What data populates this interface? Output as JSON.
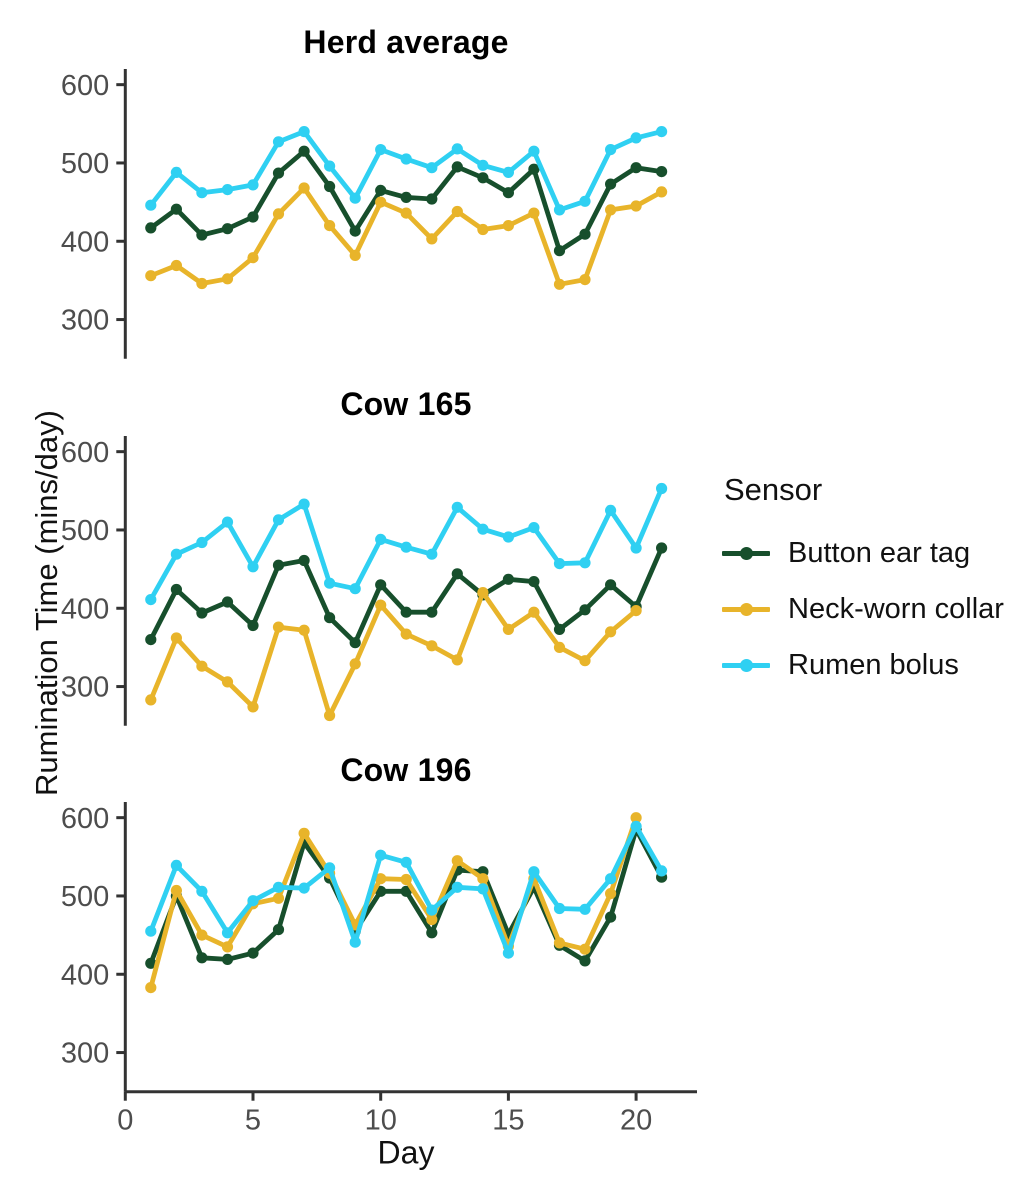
{
  "axes": {
    "ylabel": "Rumination Time (mins/day)",
    "xlabel": "Day",
    "y_ticks": [
      600,
      500,
      400,
      300
    ],
    "x_ticks": [
      0,
      5,
      10,
      15,
      20
    ],
    "ylim": [
      250,
      620
    ],
    "xlim": [
      0,
      22.5
    ],
    "axis_color": "#333333",
    "tick_label_color": "#4d4d4d"
  },
  "legend": {
    "title": "Sensor",
    "entries": [
      {
        "label": "Button ear tag",
        "color": "#174f2c"
      },
      {
        "label": "Neck-worn collar",
        "color": "#e8b42a"
      },
      {
        "label": "Rumen bolus",
        "color": "#2fd0f2"
      }
    ]
  },
  "chart_data": [
    {
      "type": "line",
      "title": "Herd average",
      "xlabel": "Day",
      "ylabel": "Rumination Time (mins/day)",
      "x": [
        1,
        2,
        3,
        4,
        5,
        6,
        7,
        8,
        9,
        10,
        11,
        12,
        13,
        14,
        15,
        16,
        17,
        18,
        19,
        20,
        21
      ],
      "series": [
        {
          "name": "Button ear tag",
          "values": [
            417,
            441,
            408,
            416,
            431,
            487,
            515,
            470,
            413,
            465,
            456,
            454,
            495,
            481,
            462,
            492,
            388,
            409,
            473,
            494,
            489
          ]
        },
        {
          "name": "Neck-worn collar",
          "values": [
            356,
            369,
            346,
            352,
            379,
            435,
            468,
            420,
            382,
            450,
            436,
            403,
            438,
            415,
            420,
            436,
            345,
            351,
            440,
            445,
            463
          ]
        },
        {
          "name": "Rumen bolus",
          "values": [
            446,
            488,
            462,
            466,
            472,
            527,
            540,
            496,
            455,
            517,
            505,
            494,
            518,
            497,
            488,
            515,
            440,
            451,
            517,
            532,
            540
          ]
        }
      ]
    },
    {
      "type": "line",
      "title": "Cow 165",
      "xlabel": "Day",
      "ylabel": "Rumination Time (mins/day)",
      "x": [
        1,
        2,
        3,
        4,
        5,
        6,
        7,
        8,
        9,
        10,
        11,
        12,
        13,
        14,
        15,
        16,
        17,
        18,
        19,
        20,
        21
      ],
      "series": [
        {
          "name": "Button ear tag",
          "values": [
            360,
            424,
            394,
            408,
            378,
            455,
            461,
            388,
            356,
            430,
            395,
            395,
            444,
            417,
            437,
            434,
            373,
            398,
            430,
            402,
            477
          ]
        },
        {
          "name": "Neck-worn collar",
          "values": [
            283,
            362,
            326,
            306,
            274,
            376,
            372,
            263,
            329,
            404,
            367,
            352,
            334,
            420,
            373,
            395,
            350,
            333,
            370,
            397,
            null
          ]
        },
        {
          "name": "Rumen bolus",
          "values": [
            411,
            469,
            484,
            510,
            453,
            513,
            533,
            432,
            425,
            488,
            478,
            469,
            529,
            501,
            491,
            503,
            457,
            458,
            525,
            477,
            553
          ]
        }
      ]
    },
    {
      "type": "line",
      "title": "Cow 196",
      "xlabel": "Day",
      "ylabel": "Rumination Time (mins/day)",
      "x": [
        1,
        2,
        3,
        4,
        5,
        6,
        7,
        8,
        9,
        10,
        11,
        12,
        13,
        14,
        15,
        16,
        17,
        18,
        19,
        20,
        21
      ],
      "series": [
        {
          "name": "Button ear tag",
          "values": [
            414,
            500,
            421,
            419,
            427,
            457,
            568,
            523,
            455,
            506,
            506,
            453,
            533,
            531,
            451,
            511,
            437,
            417,
            473,
            585,
            524
          ]
        },
        {
          "name": "Neck-worn collar",
          "values": [
            383,
            507,
            450,
            435,
            490,
            497,
            580,
            529,
            463,
            522,
            521,
            470,
            545,
            522,
            436,
            522,
            440,
            432,
            503,
            600,
            null
          ]
        },
        {
          "name": "Rumen bolus",
          "values": [
            455,
            539,
            506,
            453,
            494,
            511,
            510,
            536,
            441,
            552,
            543,
            482,
            511,
            509,
            427,
            531,
            484,
            483,
            522,
            589,
            532
          ]
        }
      ]
    }
  ],
  "style": {
    "line_width": 4.8,
    "point_radius": 5.6
  }
}
